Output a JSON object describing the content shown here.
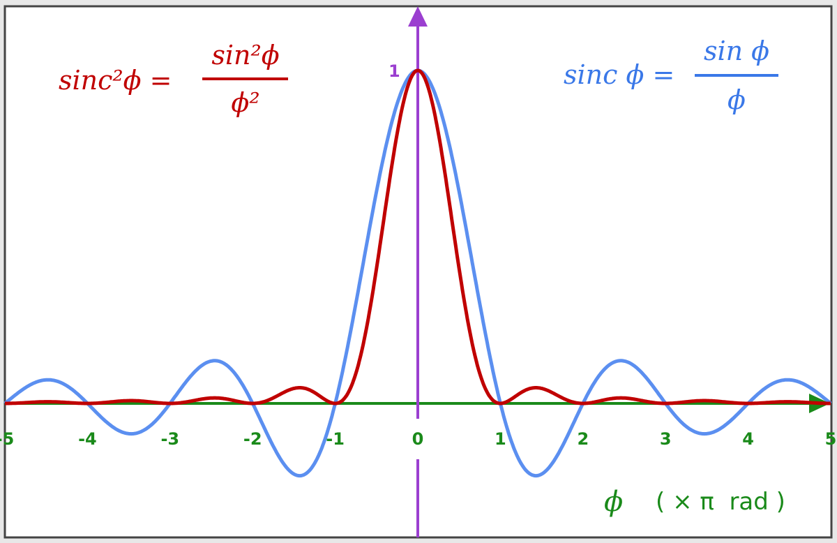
{
  "chart_data": {
    "type": "line",
    "xlim": [
      -5,
      5
    ],
    "ylim": [
      -0.25,
      1.0
    ],
    "grid": false,
    "x_ticks": [
      "-5",
      "-4",
      "-3",
      "-2",
      "-1",
      "0",
      "1",
      "2",
      "3",
      "4",
      "5"
    ],
    "y_tick_label": "1",
    "xlabel": {
      "symbol": "ϕ",
      "unit": "( × π  rad )"
    },
    "series": [
      {
        "name": "sinc ϕ = sin ϕ / ϕ",
        "label": {
          "lhs": "sinc ϕ =",
          "num": "sin ϕ",
          "den": "ϕ"
        },
        "color": "#5b8ff0",
        "x": [
          -5,
          -4.5,
          -4,
          -3.5,
          -3,
          -2.5,
          -2,
          -1.5,
          -1,
          -0.5,
          0,
          0.5,
          1,
          1.5,
          2,
          2.5,
          3,
          3.5,
          4,
          4.5,
          5
        ],
        "y": [
          0,
          0.071,
          0,
          -0.091,
          0,
          0.127,
          0,
          -0.212,
          0,
          0.637,
          1,
          0.637,
          0,
          -0.212,
          0,
          0.127,
          0,
          -0.091,
          0,
          0.071,
          0
        ]
      },
      {
        "name": "sinc²ϕ = sin²ϕ / ϕ²",
        "label": {
          "lhs": "sinc²ϕ =",
          "num": "sin²ϕ",
          "den": "ϕ²"
        },
        "color": "#c00000",
        "x": [
          -5,
          -4.5,
          -4,
          -3.5,
          -3,
          -2.5,
          -2,
          -1.5,
          -1,
          -0.5,
          0,
          0.5,
          1,
          1.5,
          2,
          2.5,
          3,
          3.5,
          4,
          4.5,
          5
        ],
        "y": [
          0,
          0.005,
          0,
          0.008,
          0,
          0.016,
          0,
          0.045,
          0,
          0.405,
          1,
          0.405,
          0,
          0.045,
          0,
          0.016,
          0,
          0.008,
          0,
          0.005,
          0
        ]
      }
    ],
    "colors": {
      "x_axis": "#1a8a1a",
      "y_axis": "#9b3fd0",
      "frame": "#444444"
    }
  }
}
